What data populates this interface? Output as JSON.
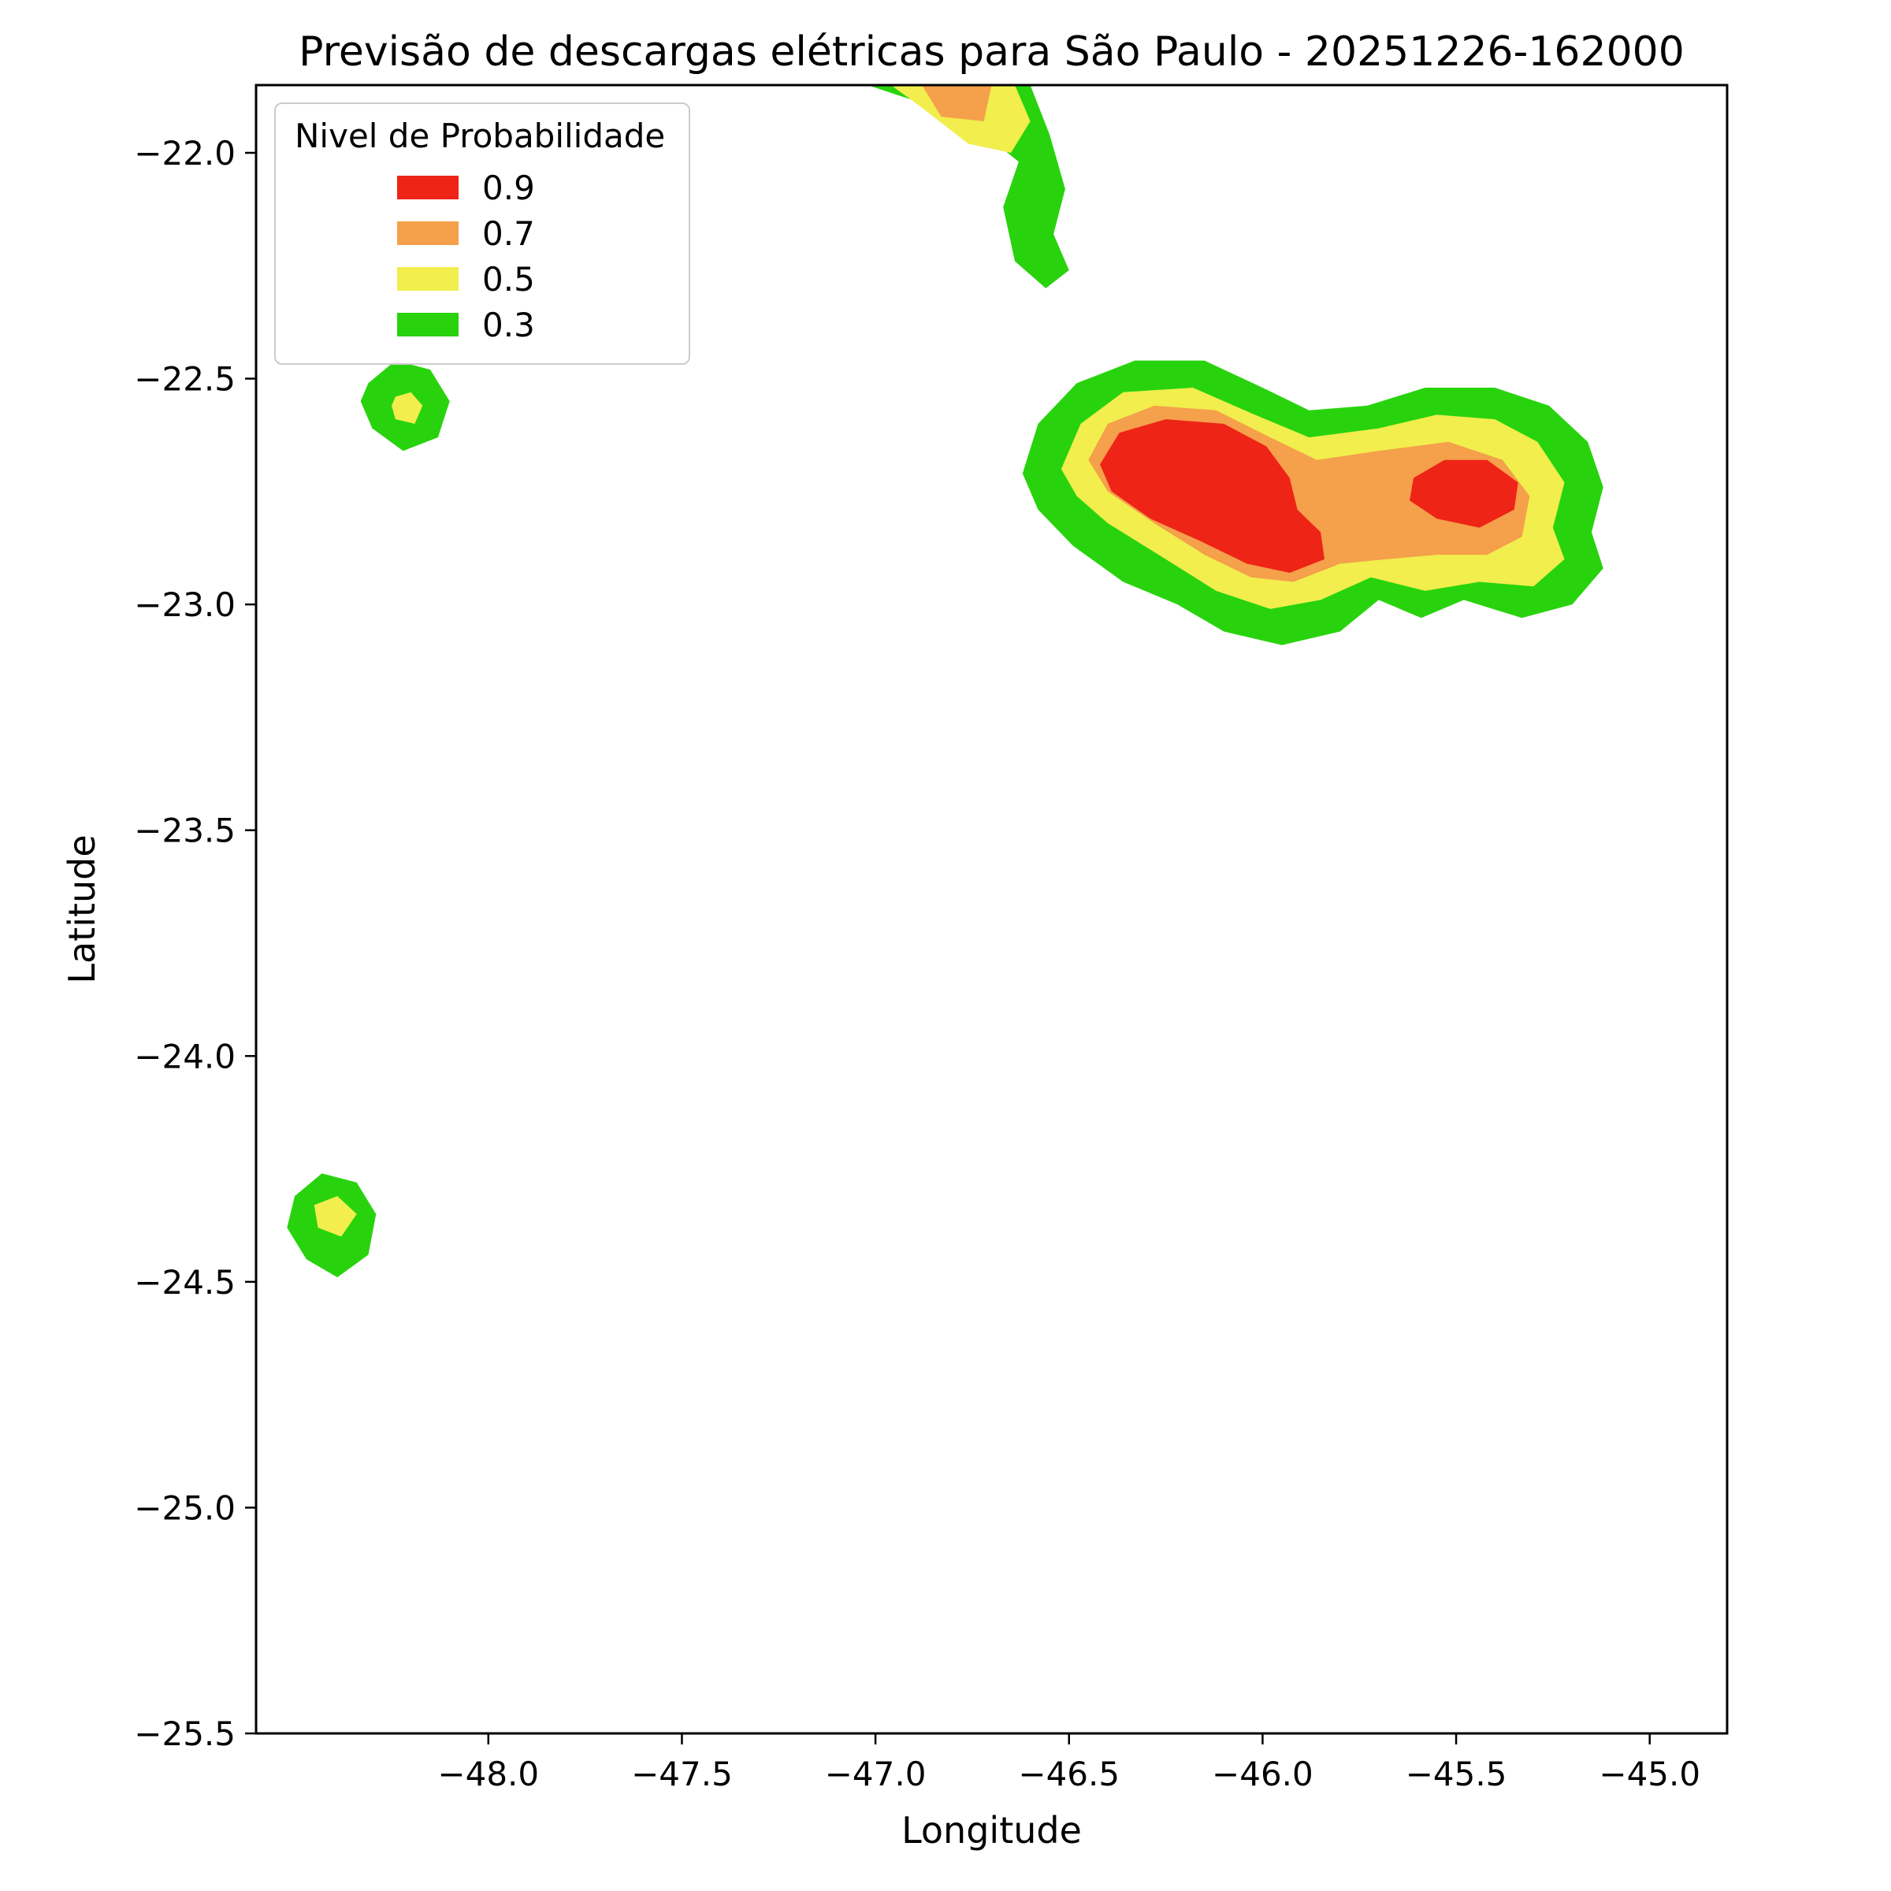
{
  "chart_data": {
    "type": "contour",
    "title": "Previsão de descargas elétricas para São Paulo - 20251226-162000",
    "xlabel": "Longitude",
    "ylabel": "Latitude",
    "xlim": [
      -48.6,
      -44.8
    ],
    "ylim": [
      -25.5,
      -21.85
    ],
    "grid": false,
    "background": "#ffffff",
    "x_ticks": {
      "values": [
        -48.0,
        -47.5,
        -47.0,
        -46.5,
        -46.0,
        -45.5,
        -45.0
      ],
      "labels": [
        "−48.0",
        "−47.5",
        "−47.0",
        "−46.5",
        "−46.0",
        "−45.5",
        "−45.0"
      ]
    },
    "y_ticks": {
      "values": [
        -22.0,
        -22.5,
        -23.0,
        -23.5,
        -24.0,
        -24.5,
        -25.0,
        -25.5
      ],
      "labels": [
        "−22.0",
        "−22.5",
        "−23.0",
        "−23.5",
        "−24.0",
        "−24.5",
        "−25.0",
        "−25.5"
      ]
    },
    "legend": {
      "title": "Nivel de Probabilidade",
      "position": "upper left",
      "items": [
        {
          "label": "0.9",
          "level": 0.9,
          "color": "#ee2417"
        },
        {
          "label": "0.7",
          "level": 0.7,
          "color": "#f5a04a"
        },
        {
          "label": "0.5",
          "level": 0.5,
          "color": "#f1ee4d"
        },
        {
          "label": "0.3",
          "level": 0.3,
          "color": "#28d30d"
        }
      ]
    },
    "levels": [
      0.3,
      0.5,
      0.7,
      0.9
    ],
    "level_colors": {
      "0.3": "#28d30d",
      "0.5": "#f1ee4d",
      "0.7": "#f5a04a",
      "0.9": "#ee2417"
    },
    "regions": [
      {
        "name": "north-cell-p03",
        "level": 0.3,
        "points": [
          [
            -47.02,
            -21.85
          ],
          [
            -46.6,
            -21.85
          ],
          [
            -46.55,
            -21.96
          ],
          [
            -46.51,
            -22.08
          ],
          [
            -46.54,
            -22.18
          ],
          [
            -46.5,
            -22.26
          ],
          [
            -46.56,
            -22.3
          ],
          [
            -46.64,
            -22.24
          ],
          [
            -46.67,
            -22.12
          ],
          [
            -46.63,
            -22.02
          ],
          [
            -46.73,
            -21.95
          ],
          [
            -46.88,
            -21.89
          ]
        ]
      },
      {
        "name": "north-cell-p05",
        "level": 0.5,
        "points": [
          [
            -46.96,
            -21.85
          ],
          [
            -46.64,
            -21.85
          ],
          [
            -46.6,
            -21.93
          ],
          [
            -46.65,
            -22.0
          ],
          [
            -46.76,
            -21.98
          ],
          [
            -46.88,
            -21.9
          ]
        ]
      },
      {
        "name": "north-cell-p07",
        "level": 0.7,
        "points": [
          [
            -46.88,
            -21.85
          ],
          [
            -46.7,
            -21.85
          ],
          [
            -46.72,
            -21.93
          ],
          [
            -46.83,
            -21.92
          ]
        ]
      },
      {
        "name": "west-small-cell-p03",
        "level": 0.3,
        "points": [
          [
            -48.31,
            -22.51
          ],
          [
            -48.24,
            -22.46
          ],
          [
            -48.15,
            -22.48
          ],
          [
            -48.1,
            -22.55
          ],
          [
            -48.13,
            -22.63
          ],
          [
            -48.22,
            -22.66
          ],
          [
            -48.3,
            -22.61
          ],
          [
            -48.33,
            -22.55
          ]
        ]
      },
      {
        "name": "west-small-cell-p05",
        "level": 0.5,
        "points": [
          [
            -48.24,
            -22.54
          ],
          [
            -48.2,
            -22.53
          ],
          [
            -48.17,
            -22.56
          ],
          [
            -48.19,
            -22.6
          ],
          [
            -48.24,
            -22.59
          ],
          [
            -48.25,
            -22.56
          ]
        ]
      },
      {
        "name": "east-main-cell-p03",
        "level": 0.3,
        "points": [
          [
            -46.62,
            -22.71
          ],
          [
            -46.58,
            -22.6
          ],
          [
            -46.48,
            -22.51
          ],
          [
            -46.33,
            -22.46
          ],
          [
            -46.15,
            -22.46
          ],
          [
            -46.0,
            -22.52
          ],
          [
            -45.88,
            -22.57
          ],
          [
            -45.73,
            -22.56
          ],
          [
            -45.58,
            -22.52
          ],
          [
            -45.4,
            -22.52
          ],
          [
            -45.26,
            -22.56
          ],
          [
            -45.16,
            -22.64
          ],
          [
            -45.12,
            -22.74
          ],
          [
            -45.15,
            -22.84
          ],
          [
            -45.12,
            -22.92
          ],
          [
            -45.2,
            -23.0
          ],
          [
            -45.33,
            -23.03
          ],
          [
            -45.48,
            -22.99
          ],
          [
            -45.59,
            -23.03
          ],
          [
            -45.7,
            -22.99
          ],
          [
            -45.8,
            -23.06
          ],
          [
            -45.95,
            -23.09
          ],
          [
            -46.1,
            -23.06
          ],
          [
            -46.22,
            -23.0
          ],
          [
            -46.36,
            -22.95
          ],
          [
            -46.49,
            -22.87
          ],
          [
            -46.58,
            -22.79
          ]
        ]
      },
      {
        "name": "east-main-cell-p05",
        "level": 0.5,
        "points": [
          [
            -46.52,
            -22.7
          ],
          [
            -46.47,
            -22.6
          ],
          [
            -46.36,
            -22.53
          ],
          [
            -46.18,
            -22.52
          ],
          [
            -46.02,
            -22.58
          ],
          [
            -45.88,
            -22.63
          ],
          [
            -45.7,
            -22.61
          ],
          [
            -45.55,
            -22.58
          ],
          [
            -45.4,
            -22.59
          ],
          [
            -45.29,
            -22.64
          ],
          [
            -45.22,
            -22.73
          ],
          [
            -45.25,
            -22.83
          ],
          [
            -45.22,
            -22.9
          ],
          [
            -45.3,
            -22.96
          ],
          [
            -45.44,
            -22.95
          ],
          [
            -45.58,
            -22.97
          ],
          [
            -45.72,
            -22.94
          ],
          [
            -45.85,
            -22.99
          ],
          [
            -45.98,
            -23.01
          ],
          [
            -46.12,
            -22.97
          ],
          [
            -46.25,
            -22.9
          ],
          [
            -46.4,
            -22.82
          ],
          [
            -46.48,
            -22.76
          ]
        ]
      },
      {
        "name": "east-main-cell-p07",
        "level": 0.7,
        "points": [
          [
            -46.45,
            -22.68
          ],
          [
            -46.4,
            -22.6
          ],
          [
            -46.28,
            -22.56
          ],
          [
            -46.12,
            -22.57
          ],
          [
            -45.98,
            -22.63
          ],
          [
            -45.86,
            -22.68
          ],
          [
            -45.7,
            -22.66
          ],
          [
            -45.52,
            -22.64
          ],
          [
            -45.38,
            -22.68
          ],
          [
            -45.31,
            -22.76
          ],
          [
            -45.33,
            -22.85
          ],
          [
            -45.42,
            -22.89
          ],
          [
            -45.55,
            -22.89
          ],
          [
            -45.68,
            -22.9
          ],
          [
            -45.8,
            -22.91
          ],
          [
            -45.92,
            -22.95
          ],
          [
            -46.03,
            -22.94
          ],
          [
            -46.15,
            -22.89
          ],
          [
            -46.28,
            -22.82
          ],
          [
            -46.4,
            -22.75
          ]
        ]
      },
      {
        "name": "east-main-cell-west-core-p09",
        "level": 0.9,
        "points": [
          [
            -46.42,
            -22.69
          ],
          [
            -46.37,
            -22.62
          ],
          [
            -46.25,
            -22.59
          ],
          [
            -46.1,
            -22.6
          ],
          [
            -45.99,
            -22.65
          ],
          [
            -45.93,
            -22.72
          ],
          [
            -45.91,
            -22.79
          ],
          [
            -45.85,
            -22.84
          ],
          [
            -45.84,
            -22.9
          ],
          [
            -45.93,
            -22.93
          ],
          [
            -46.04,
            -22.91
          ],
          [
            -46.16,
            -22.86
          ],
          [
            -46.29,
            -22.81
          ],
          [
            -46.39,
            -22.75
          ]
        ]
      },
      {
        "name": "east-main-cell-east-core-p09",
        "level": 0.9,
        "points": [
          [
            -45.61,
            -22.72
          ],
          [
            -45.53,
            -22.68
          ],
          [
            -45.42,
            -22.68
          ],
          [
            -45.34,
            -22.73
          ],
          [
            -45.35,
            -22.79
          ],
          [
            -45.44,
            -22.83
          ],
          [
            -45.55,
            -22.81
          ],
          [
            -45.62,
            -22.77
          ]
        ]
      },
      {
        "name": "southwest-cell-p03",
        "level": 0.3,
        "points": [
          [
            -48.5,
            -24.31
          ],
          [
            -48.43,
            -24.26
          ],
          [
            -48.34,
            -24.28
          ],
          [
            -48.29,
            -24.35
          ],
          [
            -48.31,
            -24.44
          ],
          [
            -48.39,
            -24.49
          ],
          [
            -48.47,
            -24.45
          ],
          [
            -48.52,
            -24.38
          ]
        ]
      },
      {
        "name": "southwest-cell-p05",
        "level": 0.5,
        "points": [
          [
            -48.45,
            -24.33
          ],
          [
            -48.39,
            -24.31
          ],
          [
            -48.34,
            -24.35
          ],
          [
            -48.38,
            -24.4
          ],
          [
            -48.44,
            -24.38
          ]
        ]
      }
    ]
  }
}
